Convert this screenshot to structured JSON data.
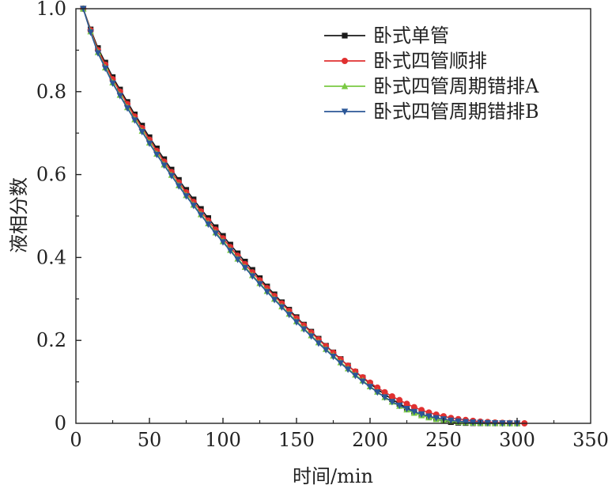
{
  "chart_data": {
    "type": "line",
    "xlabel": "时间/min",
    "ylabel": "液相分数",
    "xlim": [
      0,
      350
    ],
    "ylim": [
      0,
      1.0
    ],
    "xticks": [
      "0",
      "50",
      "100",
      "150",
      "200",
      "250",
      "300",
      "350"
    ],
    "yticks": [
      "0",
      "0.2",
      "0.4",
      "0.6",
      "0.8",
      "1.0"
    ],
    "legend_position": "top-right",
    "grid": false,
    "series": [
      {
        "name": "卧式单管",
        "color": "#1a1a1a",
        "marker": "square",
        "x": [
          5,
          10,
          15,
          20,
          25,
          30,
          35,
          40,
          45,
          50,
          55,
          60,
          65,
          70,
          75,
          80,
          85,
          90,
          95,
          100,
          105,
          110,
          115,
          120,
          125,
          130,
          135,
          140,
          145,
          150,
          155,
          160,
          165,
          170,
          175,
          180,
          185,
          190,
          195,
          200,
          205,
          210,
          215,
          220,
          225,
          230,
          235,
          240,
          245,
          250,
          255,
          260,
          265,
          270,
          275,
          280,
          285,
          290,
          295,
          300
        ],
        "y": [
          1.0,
          0.95,
          0.905,
          0.87,
          0.835,
          0.805,
          0.775,
          0.745,
          0.718,
          0.69,
          0.663,
          0.637,
          0.612,
          0.587,
          0.563,
          0.54,
          0.517,
          0.495,
          0.473,
          0.452,
          0.431,
          0.41,
          0.39,
          0.37,
          0.35,
          0.33,
          0.311,
          0.292,
          0.274,
          0.256,
          0.238,
          0.221,
          0.204,
          0.187,
          0.171,
          0.155,
          0.139,
          0.124,
          0.11,
          0.096,
          0.082,
          0.07,
          0.058,
          0.047,
          0.037,
          0.028,
          0.021,
          0.015,
          0.01,
          0.006,
          0.003,
          0.0015,
          0.0008,
          0.0004,
          0.0002,
          0.0001,
          0,
          0,
          0,
          0
        ]
      },
      {
        "name": "卧式四管顺排",
        "color": "#e03030",
        "marker": "circle",
        "x": [
          5,
          10,
          15,
          20,
          25,
          30,
          35,
          40,
          45,
          50,
          55,
          60,
          65,
          70,
          75,
          80,
          85,
          90,
          95,
          100,
          105,
          110,
          115,
          120,
          125,
          130,
          135,
          140,
          145,
          150,
          155,
          160,
          165,
          170,
          175,
          180,
          185,
          190,
          195,
          200,
          205,
          210,
          215,
          220,
          225,
          230,
          235,
          240,
          245,
          250,
          255,
          260,
          265,
          270,
          275,
          280,
          285,
          290,
          295,
          300,
          305
        ],
        "y": [
          1.0,
          0.948,
          0.9,
          0.865,
          0.83,
          0.8,
          0.77,
          0.74,
          0.712,
          0.684,
          0.657,
          0.631,
          0.606,
          0.581,
          0.557,
          0.534,
          0.511,
          0.489,
          0.467,
          0.446,
          0.425,
          0.404,
          0.384,
          0.364,
          0.345,
          0.326,
          0.307,
          0.289,
          0.271,
          0.253,
          0.236,
          0.219,
          0.202,
          0.186,
          0.17,
          0.154,
          0.139,
          0.125,
          0.111,
          0.098,
          0.086,
          0.075,
          0.065,
          0.056,
          0.047,
          0.039,
          0.032,
          0.026,
          0.021,
          0.017,
          0.013,
          0.01,
          0.008,
          0.006,
          0.004,
          0.003,
          0.002,
          0.0012,
          0.0006,
          0.0002,
          0
        ]
      },
      {
        "name": "卧式四管周期错排A",
        "color": "#7ac943",
        "marker": "triangle-up",
        "x": [
          5,
          10,
          15,
          20,
          25,
          30,
          35,
          40,
          45,
          50,
          55,
          60,
          65,
          70,
          75,
          80,
          85,
          90,
          95,
          100,
          105,
          110,
          115,
          120,
          125,
          130,
          135,
          140,
          145,
          150,
          155,
          160,
          165,
          170,
          175,
          180,
          185,
          190,
          195,
          200,
          205,
          210,
          215,
          220,
          225,
          230,
          235,
          240,
          245,
          250,
          255,
          260,
          265,
          270,
          275,
          280,
          285,
          290,
          295,
          300
        ],
        "y": [
          1.0,
          0.945,
          0.895,
          0.858,
          0.822,
          0.792,
          0.762,
          0.733,
          0.705,
          0.677,
          0.65,
          0.624,
          0.599,
          0.574,
          0.55,
          0.527,
          0.504,
          0.482,
          0.46,
          0.439,
          0.418,
          0.397,
          0.377,
          0.357,
          0.338,
          0.319,
          0.3,
          0.282,
          0.264,
          0.246,
          0.229,
          0.212,
          0.195,
          0.179,
          0.163,
          0.147,
          0.132,
          0.117,
          0.103,
          0.089,
          0.076,
          0.063,
          0.052,
          0.042,
          0.033,
          0.025,
          0.019,
          0.014,
          0.01,
          0.007,
          0.005,
          0.003,
          0.002,
          0.0012,
          0.0007,
          0.0004,
          0.0002,
          0.0001,
          0,
          0
        ]
      },
      {
        "name": "卧式四管周期错排B",
        "color": "#2b5797",
        "marker": "triangle-down",
        "x": [
          5,
          10,
          15,
          20,
          25,
          30,
          35,
          40,
          45,
          50,
          55,
          60,
          65,
          70,
          75,
          80,
          85,
          90,
          95,
          100,
          105,
          110,
          115,
          120,
          125,
          130,
          135,
          140,
          145,
          150,
          155,
          160,
          165,
          170,
          175,
          180,
          185,
          190,
          195,
          200,
          205,
          210,
          215,
          220,
          225,
          230,
          235,
          240,
          245,
          250,
          255,
          260,
          265,
          270,
          275,
          280,
          285,
          290,
          295,
          300
        ],
        "y": [
          1.0,
          0.943,
          0.893,
          0.856,
          0.82,
          0.79,
          0.76,
          0.731,
          0.703,
          0.675,
          0.648,
          0.622,
          0.597,
          0.572,
          0.548,
          0.525,
          0.502,
          0.48,
          0.458,
          0.437,
          0.416,
          0.395,
          0.375,
          0.355,
          0.336,
          0.317,
          0.298,
          0.28,
          0.262,
          0.244,
          0.227,
          0.21,
          0.193,
          0.177,
          0.161,
          0.145,
          0.13,
          0.115,
          0.101,
          0.088,
          0.075,
          0.063,
          0.052,
          0.043,
          0.035,
          0.028,
          0.022,
          0.017,
          0.013,
          0.01,
          0.007,
          0.005,
          0.0035,
          0.0024,
          0.0016,
          0.001,
          0.0006,
          0.0003,
          0.0001,
          0
        ]
      }
    ]
  }
}
